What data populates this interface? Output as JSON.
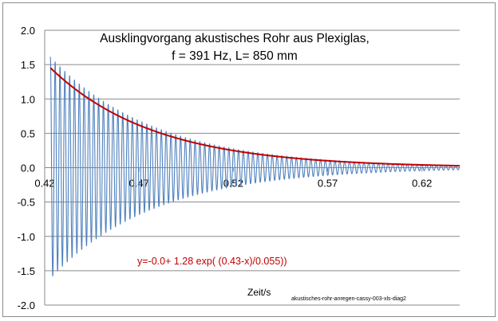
{
  "chart_data": {
    "type": "line",
    "title_line1": "Ausklingvorgang akustisches Rohr aus Plexiglas,",
    "title_line2": "f = 391 Hz, L= 850 mm",
    "xlabel": "Zeit/s",
    "ylabel": "",
    "xlim": [
      0.42,
      0.64
    ],
    "ylim": [
      -2.0,
      2.0
    ],
    "x_ticks": [
      0.42,
      0.47,
      0.52,
      0.57,
      0.62
    ],
    "x_tick_labels": [
      "0.42",
      "0.47",
      "0.52",
      "0.57",
      "0.62"
    ],
    "y_ticks": [
      -2.0,
      -1.5,
      -1.0,
      -0.5,
      0.0,
      0.5,
      1.0,
      1.5,
      2.0
    ],
    "y_tick_labels": [
      "-2.0",
      "-1.5",
      "-1.0",
      "-0.5",
      "0.0",
      "0.5",
      "1.0",
      "1.5",
      "2.0"
    ],
    "grid": "horizontal",
    "series": [
      {
        "name": "",
        "kind": "damped-oscillation",
        "color": "#4f81bd",
        "frequency_hz": 391,
        "amplitude": 1.42,
        "offset": 0.0,
        "decay_tau_s": 0.055,
        "t0": 0.43,
        "x_start": 0.423,
        "x_end": 0.64
      },
      {
        "name": "",
        "kind": "exponential-envelope",
        "color": "#c00000",
        "offset": 0.0,
        "amplitude": 1.28,
        "t0": 0.43,
        "decay_tau_s": 0.055,
        "x_start": 0.423,
        "x_end": 0.64
      }
    ],
    "annotations": {
      "fit_formula": "y=-0.0+ 1.28 exp( (0.43-x)/0.055))",
      "fit_color": "#c00000",
      "source_label": "akustisches-rohr-anregen-cassy-003-xls-diag2"
    }
  }
}
